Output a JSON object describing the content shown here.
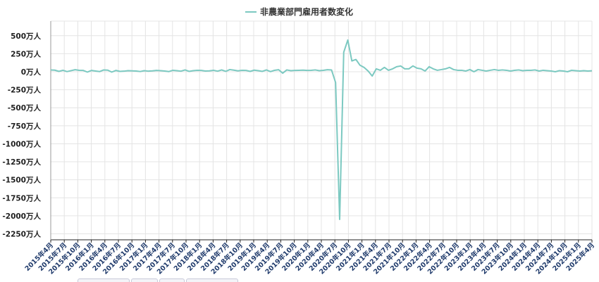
{
  "chart_data": {
    "type": "line",
    "legend": {
      "label": "非農業部門雇用者数変化",
      "position": "top-center"
    },
    "colors": {
      "series": "#7cc9c1",
      "grid": "#e4e4e4",
      "axis": "#222222"
    },
    "grid": true,
    "y_ticks": [
      {
        "value": 500,
        "label": "500万人"
      },
      {
        "value": 250,
        "label": "250万人"
      },
      {
        "value": 0,
        "label": "0万人"
      },
      {
        "value": -250,
        "label": "-250万人"
      },
      {
        "value": -500,
        "label": "-500万人"
      },
      {
        "value": -750,
        "label": "-750万人"
      },
      {
        "value": -1000,
        "label": "-1000万人"
      },
      {
        "value": -1250,
        "label": "-1250万人"
      },
      {
        "value": -1500,
        "label": "-1500万人"
      },
      {
        "value": -1750,
        "label": "-1750万人"
      },
      {
        "value": -2000,
        "label": "-2000万人"
      },
      {
        "value": -2250,
        "label": "-2250万人"
      }
    ],
    "ylim": [
      -2300,
      700
    ],
    "x_ticks": [
      "2015年4月",
      "2015年7月",
      "2015年10月",
      "2016年1月",
      "2016年4月",
      "2016年7月",
      "2016年10月",
      "2017年1月",
      "2017年4月",
      "2017年7月",
      "2017年10月",
      "2018年1月",
      "2018年4月",
      "2018年7月",
      "2018年10月",
      "2019年1月",
      "2019年4月",
      "2019年7月",
      "2019年10月",
      "2020年1月",
      "2020年4月",
      "2020年7月",
      "2020年10月",
      "2021年1月",
      "2021年4月",
      "2021年7月",
      "2021年10月",
      "2022年1月",
      "2022年4月",
      "2022年7月",
      "2022年10月",
      "2023年1月",
      "2023年4月",
      "2023年7月",
      "2023年10月",
      "2024年1月",
      "2024年4月",
      "2024年7月",
      "2024年10月",
      "2025年1月",
      "2025年4月"
    ],
    "x_start": "2015-04",
    "x_end": "2025-04",
    "series": [
      {
        "values": [
          25,
          22,
          5,
          20,
          2,
          15,
          28,
          20,
          18,
          -5,
          18,
          10,
          2,
          25,
          22,
          -5,
          18,
          5,
          8,
          15,
          12,
          10,
          3,
          15,
          8,
          12,
          18,
          15,
          10,
          2,
          20,
          15,
          8,
          25,
          5,
          15,
          20,
          18,
          10,
          12,
          20,
          8,
          25,
          5,
          30,
          22,
          12,
          20,
          18,
          5,
          22,
          15,
          5,
          25,
          2,
          20,
          28,
          -20,
          25,
          15,
          18,
          20,
          22,
          18,
          20,
          25,
          15,
          20,
          28,
          25,
          -150,
          -2050,
          270,
          440,
          150,
          170,
          90,
          60,
          10,
          -60,
          40,
          20,
          60,
          20,
          40,
          70,
          80,
          40,
          40,
          80,
          50,
          40,
          10,
          70,
          40,
          20,
          30,
          40,
          60,
          30,
          20,
          20,
          10,
          30,
          0,
          30,
          20,
          10,
          20,
          30,
          20,
          25,
          20,
          10,
          20,
          25,
          15,
          20,
          20,
          25,
          10,
          20,
          15,
          10,
          0,
          15,
          10,
          0,
          20,
          15,
          10,
          15,
          10,
          14
        ]
      }
    ]
  }
}
